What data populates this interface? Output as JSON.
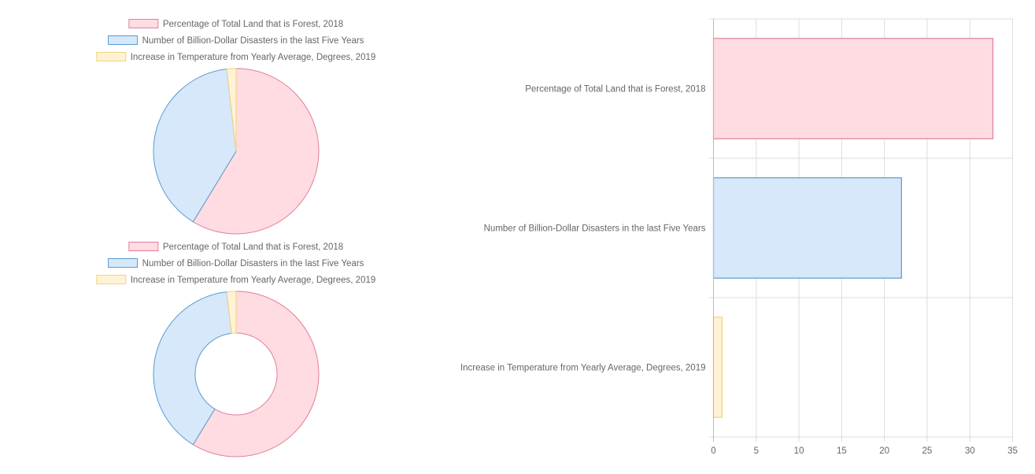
{
  "colors": {
    "fills": [
      "#ffdbe2",
      "#d6e8fa",
      "#fff3d6"
    ],
    "strokes": [
      "#e0809a",
      "#5a9bd3",
      "#f5d27f"
    ],
    "grid": "#dddddd",
    "text": "#666666"
  },
  "chart_data": [
    {
      "type": "pie",
      "legend_position": "top",
      "labels": [
        "Percentage of Total Land that is Forest, 2018",
        "Number of Billion-Dollar Disasters in the last Five Years",
        "Increase in Temperature from Yearly Average, Degrees, 2019"
      ],
      "values": [
        32.7,
        22,
        1
      ]
    },
    {
      "type": "doughnut",
      "legend_position": "top",
      "labels": [
        "Percentage of Total Land that is Forest, 2018",
        "Number of Billion-Dollar Disasters in the last Five Years",
        "Increase in Temperature from Yearly Average, Degrees, 2019"
      ],
      "values": [
        32.7,
        22,
        1
      ]
    },
    {
      "type": "bar",
      "orientation": "horizontal",
      "categories": [
        "Percentage of Total Land that is Forest, 2018",
        "Number of Billion-Dollar Disasters in the last Five Years",
        "Increase in Temperature from Yearly Average, Degrees, 2019"
      ],
      "values": [
        32.7,
        22,
        1
      ],
      "xlim": [
        0,
        35
      ],
      "xticks": [
        "0",
        "5",
        "10",
        "15",
        "20",
        "25",
        "30",
        "35"
      ],
      "grid": true
    }
  ]
}
